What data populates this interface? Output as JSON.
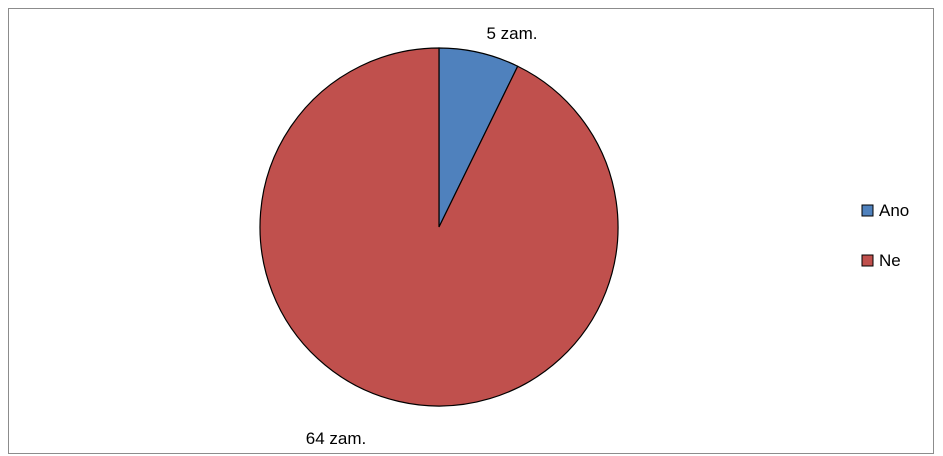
{
  "chart_data": {
    "type": "pie",
    "title": "",
    "categories": [
      "Ano",
      "Ne"
    ],
    "values": [
      5,
      64
    ],
    "data_labels": [
      "5 zam.",
      "64 zam."
    ],
    "colors": [
      "#4f81bd",
      "#c0504d"
    ],
    "start_angle": "12 o'clock",
    "direction": "clockwise",
    "legend": {
      "position": "right",
      "entries": [
        "Ano",
        "Ne"
      ]
    }
  }
}
